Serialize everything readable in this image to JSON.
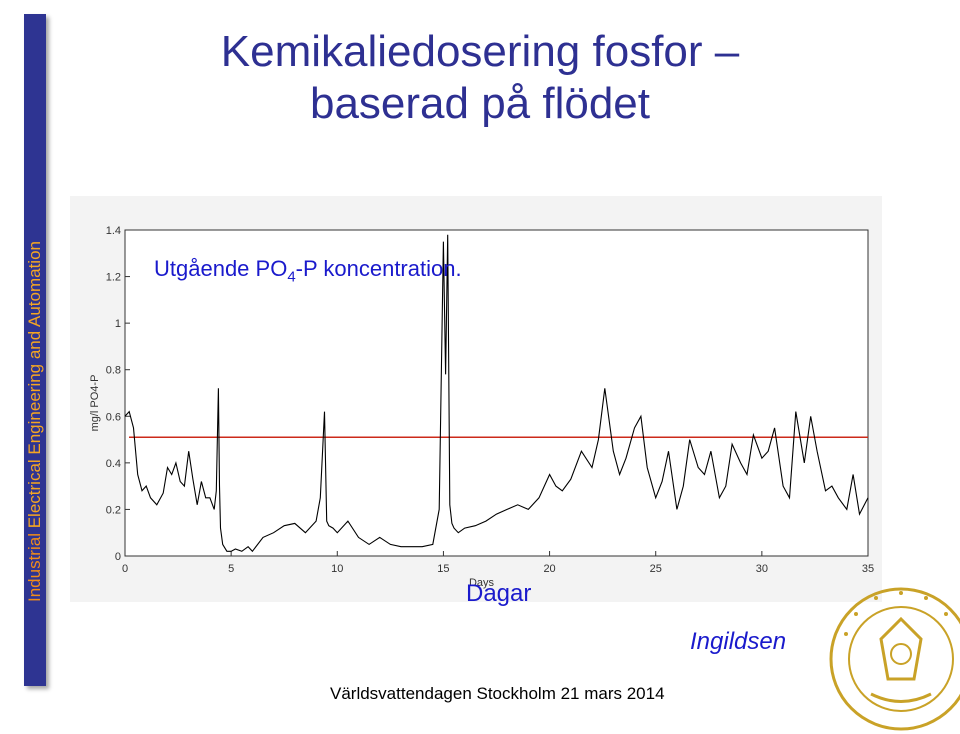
{
  "sidebar": {
    "text_part1": "Industrial",
    "text_part2": " Electrical Engineering and Automation"
  },
  "slide": {
    "title_line1": "Kemikaliedosering fosfor –",
    "title_line2": "baserad på flödet",
    "annotation_prefix": "Utgående PO",
    "annotation_sub": "4",
    "annotation_suffix": "-P koncentration.",
    "xlabel_overlay": "Dagar",
    "author": "Ingildsen",
    "footer": "Världsvattendagen Stockholm 21 mars 2014"
  },
  "colors": {
    "title": "#2e3092",
    "annotation": "#1a1acc",
    "sidebar_bg": "#2e3492",
    "sidebar_text": "#f5a623",
    "line": "#000000",
    "reference": "#cc2a1a"
  },
  "chart_data": {
    "type": "line",
    "xlabel": "Days",
    "ylabel": "mg/l PO4-P",
    "xlim": [
      0,
      35
    ],
    "ylim": [
      0,
      1.4
    ],
    "xticks": [
      "0",
      "5",
      "10",
      "15",
      "20",
      "25",
      "30",
      "35"
    ],
    "yticks": [
      "0",
      "0.2",
      "0.4",
      "0.6",
      "0.8",
      "1",
      "1.2",
      "1.4"
    ],
    "grid": false,
    "reference_line": 0.51,
    "series": [
      {
        "x": [
          0,
          0.2,
          0.4,
          0.6,
          0.8,
          1.0,
          1.2,
          1.5,
          1.8,
          2.0,
          2.2,
          2.4,
          2.6,
          2.8,
          3.0,
          3.2,
          3.4,
          3.6,
          3.8,
          4.0,
          4.2,
          4.3,
          4.4,
          4.45,
          4.5,
          4.6,
          4.8,
          5.0,
          5.2,
          5.5,
          5.8,
          6.0,
          6.5,
          7.0,
          7.5,
          8.0,
          8.5,
          9.0,
          9.2,
          9.4,
          9.5,
          9.6,
          9.8,
          10.0,
          10.5,
          11.0,
          11.5,
          12.0,
          12.5,
          13.0,
          13.5,
          14.0,
          14.5,
          14.8,
          15.0,
          15.1,
          15.2,
          15.3,
          15.4,
          15.5,
          15.7,
          16.0,
          16.5,
          17.0,
          17.5,
          18.0,
          18.5,
          19.0,
          19.5,
          20.0,
          20.3,
          20.6,
          21.0,
          21.5,
          22.0,
          22.3,
          22.6,
          23.0,
          23.3,
          23.6,
          24.0,
          24.3,
          24.6,
          25.0,
          25.3,
          25.6,
          26.0,
          26.3,
          26.6,
          27.0,
          27.3,
          27.6,
          28.0,
          28.3,
          28.6,
          29.0,
          29.3,
          29.6,
          30.0,
          30.3,
          30.6,
          31.0,
          31.3,
          31.6,
          32.0,
          32.3,
          32.6,
          33.0,
          33.3,
          33.6,
          34.0,
          34.3,
          34.6,
          35.0
        ],
        "y": [
          0.6,
          0.62,
          0.55,
          0.35,
          0.28,
          0.3,
          0.25,
          0.22,
          0.27,
          0.38,
          0.35,
          0.4,
          0.32,
          0.3,
          0.45,
          0.33,
          0.22,
          0.32,
          0.25,
          0.25,
          0.2,
          0.28,
          0.72,
          0.3,
          0.12,
          0.05,
          0.02,
          0.02,
          0.03,
          0.02,
          0.04,
          0.02,
          0.08,
          0.1,
          0.13,
          0.14,
          0.1,
          0.15,
          0.25,
          0.62,
          0.15,
          0.13,
          0.12,
          0.1,
          0.15,
          0.08,
          0.05,
          0.08,
          0.05,
          0.04,
          0.04,
          0.04,
          0.05,
          0.2,
          1.35,
          0.78,
          1.38,
          0.22,
          0.14,
          0.12,
          0.1,
          0.12,
          0.13,
          0.15,
          0.18,
          0.2,
          0.22,
          0.2,
          0.25,
          0.35,
          0.3,
          0.28,
          0.33,
          0.45,
          0.38,
          0.5,
          0.72,
          0.45,
          0.35,
          0.42,
          0.55,
          0.6,
          0.38,
          0.25,
          0.32,
          0.45,
          0.2,
          0.3,
          0.5,
          0.38,
          0.35,
          0.45,
          0.25,
          0.3,
          0.48,
          0.4,
          0.35,
          0.52,
          0.42,
          0.45,
          0.55,
          0.3,
          0.25,
          0.62,
          0.4,
          0.6,
          0.45,
          0.28,
          0.3,
          0.25,
          0.2,
          0.35,
          0.18,
          0.25
        ]
      }
    ]
  }
}
